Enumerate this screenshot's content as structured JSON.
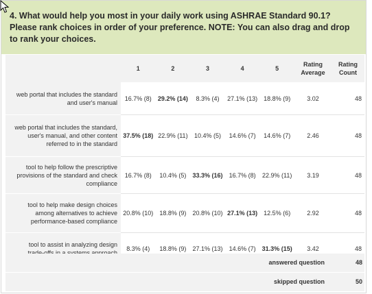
{
  "question": {
    "text": "4. What would help you most in your daily work using ASHRAE Standard 90.1? Please rank choices in order of your preference. NOTE: You can also drag and drop to rank your choices."
  },
  "columns": [
    "1",
    "2",
    "3",
    "4",
    "5",
    "Rating Average",
    "Rating Count"
  ],
  "rows": [
    {
      "label": "web portal that includes the standard and user's manual",
      "cells": [
        "16.7% (8)",
        "29.2% (14)",
        "8.3% (4)",
        "27.1% (13)",
        "18.8% (9)"
      ],
      "bold_index": 1,
      "average": "3.02",
      "count": "48"
    },
    {
      "label": "web portal that includes the standard, user's manual, and other content referred to in the standard",
      "cells": [
        "37.5% (18)",
        "22.9% (11)",
        "10.4% (5)",
        "14.6% (7)",
        "14.6% (7)"
      ],
      "bold_index": 0,
      "average": "2.46",
      "count": "48"
    },
    {
      "label": "tool to help follow the prescriptive provisions of the standard and check compliance",
      "cells": [
        "16.7% (8)",
        "10.4% (5)",
        "33.3% (16)",
        "16.7% (8)",
        "22.9% (11)"
      ],
      "bold_index": 2,
      "average": "3.19",
      "count": "48"
    },
    {
      "label": "tool to help make design choices among alternatives to achieve performance-based compliance",
      "cells": [
        "20.8% (10)",
        "18.8% (9)",
        "20.8% (10)",
        "27.1% (13)",
        "12.5% (6)"
      ],
      "bold_index": 3,
      "average": "2.92",
      "count": "48"
    },
    {
      "label": "tool to assist in analyzing design trade-offs in a systems approach",
      "cells": [
        "8.3% (4)",
        "18.8% (9)",
        "27.1% (13)",
        "14.6% (7)",
        "31.3% (15)"
      ],
      "bold_index": 4,
      "average": "3.42",
      "count": "48"
    }
  ],
  "summary": {
    "answered_label": "answered question",
    "answered_value": "48",
    "skipped_label": "skipped question",
    "skipped_value": "50"
  },
  "icons": {
    "cursor": "mouse-pointer-icon"
  }
}
